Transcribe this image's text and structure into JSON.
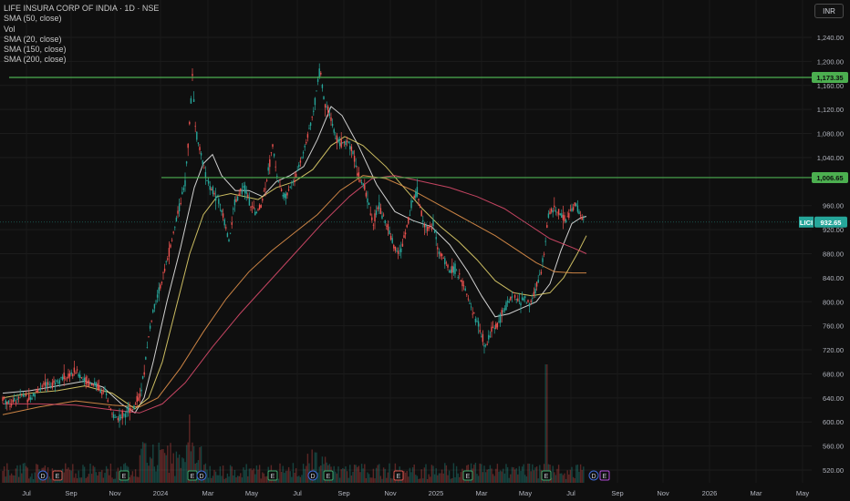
{
  "header": {
    "symbol_title": "LIFE INSURA CORP OF INDIA · 1D · NSE",
    "indicators": [
      "SMA (50, close)",
      "Vol",
      "SMA (20, close)",
      "SMA (150, close)",
      "SMA (200, close)"
    ],
    "currency_button": "INR"
  },
  "chart_data": {
    "type": "candlestick",
    "symbol": "LICI",
    "last_price": "932.65",
    "y_ticks": [
      520,
      560,
      600,
      640,
      680,
      720,
      760,
      800,
      840,
      880,
      920,
      960,
      1040,
      1080,
      1120,
      1160,
      1200,
      1240
    ],
    "y_tick_labels": [
      "520.00",
      "560.00",
      "600.00",
      "640.00",
      "680.00",
      "720.00",
      "760.00",
      "800.00",
      "840.00",
      "880.00",
      "920.00",
      "960.00",
      "1,040.00",
      "1,080.00",
      "1,120.00",
      "1,160.00",
      "1,200.00",
      "1,240.00"
    ],
    "x_tick_labels": [
      "Jul",
      "Sep",
      "Nov",
      "2024",
      "Mar",
      "May",
      "Jul",
      "Sep",
      "Nov",
      "2025",
      "Mar",
      "May",
      "Jul",
      "Sep",
      "Nov",
      "2026",
      "Mar",
      "May"
    ],
    "horizontal_levels": [
      {
        "value": 1173.35,
        "label": "1,173.35"
      },
      {
        "value": 1006.65,
        "label": "1,006.65"
      }
    ],
    "price_path": [
      [
        0,
        640
      ],
      [
        8,
        630
      ],
      [
        20,
        645
      ],
      [
        30,
        640
      ],
      [
        40,
        655
      ],
      [
        50,
        662
      ],
      [
        60,
        670
      ],
      [
        70,
        675
      ],
      [
        80,
        685
      ],
      [
        88,
        672
      ],
      [
        96,
        665
      ],
      [
        104,
        660
      ],
      [
        112,
        648
      ],
      [
        120,
        612
      ],
      [
        128,
        605
      ],
      [
        136,
        620
      ],
      [
        144,
        625
      ],
      [
        152,
        650
      ],
      [
        158,
        720
      ],
      [
        164,
        780
      ],
      [
        170,
        810
      ],
      [
        176,
        845
      ],
      [
        182,
        880
      ],
      [
        188,
        920
      ],
      [
        194,
        960
      ],
      [
        200,
        1000
      ],
      [
        205,
        1100
      ],
      [
        208,
        1175
      ],
      [
        212,
        1080
      ],
      [
        218,
        1040
      ],
      [
        224,
        1000
      ],
      [
        230,
        985
      ],
      [
        236,
        970
      ],
      [
        242,
        940
      ],
      [
        248,
        900
      ],
      [
        254,
        960
      ],
      [
        260,
        980
      ],
      [
        266,
        990
      ],
      [
        272,
        960
      ],
      [
        278,
        945
      ],
      [
        284,
        965
      ],
      [
        290,
        1010
      ],
      [
        296,
        1060
      ],
      [
        302,
        1000
      ],
      [
        308,
        975
      ],
      [
        314,
        990
      ],
      [
        320,
        1005
      ],
      [
        326,
        1030
      ],
      [
        332,
        1060
      ],
      [
        338,
        1100
      ],
      [
        343,
        1140
      ],
      [
        348,
        1190
      ],
      [
        352,
        1140
      ],
      [
        358,
        1110
      ],
      [
        364,
        1080
      ],
      [
        370,
        1060
      ],
      [
        376,
        1070
      ],
      [
        382,
        1060
      ],
      [
        388,
        1020
      ],
      [
        394,
        1000
      ],
      [
        400,
        970
      ],
      [
        406,
        930
      ],
      [
        412,
        960
      ],
      [
        418,
        940
      ],
      [
        424,
        915
      ],
      [
        430,
        890
      ],
      [
        436,
        880
      ],
      [
        442,
        920
      ],
      [
        448,
        960
      ],
      [
        454,
        985
      ],
      [
        460,
        940
      ],
      [
        466,
        920
      ],
      [
        472,
        930
      ],
      [
        478,
        880
      ],
      [
        484,
        870
      ],
      [
        490,
        850
      ],
      [
        496,
        855
      ],
      [
        502,
        835
      ],
      [
        508,
        815
      ],
      [
        514,
        790
      ],
      [
        520,
        765
      ],
      [
        526,
        740
      ],
      [
        530,
        725
      ],
      [
        536,
        755
      ],
      [
        542,
        760
      ],
      [
        548,
        780
      ],
      [
        554,
        800
      ],
      [
        560,
        810
      ],
      [
        566,
        800
      ],
      [
        572,
        805
      ],
      [
        578,
        795
      ],
      [
        584,
        820
      ],
      [
        590,
        850
      ],
      [
        594,
        880
      ],
      [
        598,
        945
      ],
      [
        604,
        955
      ],
      [
        610,
        950
      ],
      [
        616,
        935
      ],
      [
        622,
        945
      ],
      [
        628,
        965
      ],
      [
        634,
        940
      ],
      [
        638,
        932
      ]
    ],
    "moving_averages": [
      {
        "name": "SMA (20, close)",
        "color": "#e6e6e6",
        "points": [
          [
            0,
            648
          ],
          [
            30,
            652
          ],
          [
            60,
            660
          ],
          [
            90,
            668
          ],
          [
            110,
            658
          ],
          [
            130,
            630
          ],
          [
            145,
            615
          ],
          [
            155,
            640
          ],
          [
            165,
            700
          ],
          [
            180,
            800
          ],
          [
            195,
            890
          ],
          [
            210,
            990
          ],
          [
            220,
            1030
          ],
          [
            230,
            1045
          ],
          [
            240,
            1010
          ],
          [
            255,
            985
          ],
          [
            270,
            985
          ],
          [
            285,
            975
          ],
          [
            300,
            1000
          ],
          [
            315,
            1010
          ],
          [
            330,
            1025
          ],
          [
            345,
            1070
          ],
          [
            360,
            1125
          ],
          [
            372,
            1110
          ],
          [
            390,
            1060
          ],
          [
            410,
            995
          ],
          [
            430,
            950
          ],
          [
            450,
            935
          ],
          [
            470,
            925
          ],
          [
            490,
            895
          ],
          [
            510,
            850
          ],
          [
            525,
            810
          ],
          [
            540,
            775
          ],
          [
            555,
            780
          ],
          [
            570,
            790
          ],
          [
            585,
            800
          ],
          [
            600,
            830
          ],
          [
            612,
            885
          ],
          [
            624,
            930
          ],
          [
            634,
            940
          ],
          [
            640,
            942
          ]
        ]
      },
      {
        "name": "SMA (50, close)",
        "color": "#e0cf6a",
        "points": [
          [
            0,
            640
          ],
          [
            30,
            648
          ],
          [
            60,
            652
          ],
          [
            90,
            660
          ],
          [
            120,
            648
          ],
          [
            145,
            622
          ],
          [
            160,
            640
          ],
          [
            175,
            700
          ],
          [
            190,
            790
          ],
          [
            205,
            880
          ],
          [
            220,
            945
          ],
          [
            235,
            975
          ],
          [
            250,
            980
          ],
          [
            265,
            975
          ],
          [
            280,
            970
          ],
          [
            300,
            990
          ],
          [
            320,
            1000
          ],
          [
            340,
            1020
          ],
          [
            360,
            1060
          ],
          [
            375,
            1075
          ],
          [
            395,
            1060
          ],
          [
            420,
            1025
          ],
          [
            440,
            990
          ],
          [
            460,
            955
          ],
          [
            480,
            925
          ],
          [
            500,
            900
          ],
          [
            520,
            870
          ],
          [
            540,
            835
          ],
          [
            560,
            815
          ],
          [
            580,
            810
          ],
          [
            600,
            815
          ],
          [
            615,
            840
          ],
          [
            630,
            880
          ],
          [
            640,
            910
          ]
        ]
      },
      {
        "name": "SMA (150, close)",
        "color": "#e0904a",
        "points": [
          [
            0,
            612
          ],
          [
            40,
            625
          ],
          [
            80,
            635
          ],
          [
            120,
            628
          ],
          [
            150,
            625
          ],
          [
            170,
            640
          ],
          [
            195,
            690
          ],
          [
            220,
            750
          ],
          [
            245,
            805
          ],
          [
            270,
            850
          ],
          [
            295,
            885
          ],
          [
            320,
            915
          ],
          [
            345,
            945
          ],
          [
            370,
            985
          ],
          [
            395,
            1010
          ],
          [
            420,
            1005
          ],
          [
            450,
            985
          ],
          [
            480,
            960
          ],
          [
            510,
            935
          ],
          [
            540,
            910
          ],
          [
            565,
            885
          ],
          [
            585,
            865
          ],
          [
            605,
            850
          ],
          [
            625,
            848
          ],
          [
            640,
            848
          ]
        ]
      },
      {
        "name": "SMA (200, close)",
        "color": "#d84a6a",
        "points": [
          [
            0,
            630
          ],
          [
            40,
            630
          ],
          [
            80,
            628
          ],
          [
            120,
            620
          ],
          [
            150,
            615
          ],
          [
            175,
            630
          ],
          [
            200,
            665
          ],
          [
            230,
            725
          ],
          [
            260,
            780
          ],
          [
            290,
            830
          ],
          [
            320,
            880
          ],
          [
            350,
            930
          ],
          [
            380,
            975
          ],
          [
            405,
            1005
          ],
          [
            430,
            1010
          ],
          [
            460,
            1000
          ],
          [
            490,
            990
          ],
          [
            520,
            975
          ],
          [
            550,
            955
          ],
          [
            575,
            930
          ],
          [
            600,
            905
          ],
          [
            625,
            890
          ],
          [
            640,
            880
          ]
        ]
      }
    ],
    "volume_spike_indices": [
      205,
      596
    ],
    "event_markers": [
      {
        "x": 44,
        "label": "D"
      },
      {
        "x": 60,
        "label": "E"
      },
      {
        "x": 133,
        "label": "E"
      },
      {
        "x": 208,
        "label": "E"
      },
      {
        "x": 218,
        "label": "D"
      },
      {
        "x": 296,
        "label": "E"
      },
      {
        "x": 340,
        "label": "D"
      },
      {
        "x": 357,
        "label": "E"
      },
      {
        "x": 434,
        "label": "E"
      },
      {
        "x": 510,
        "label": "E"
      },
      {
        "x": 596,
        "label": "E"
      },
      {
        "x": 648,
        "label": "D"
      },
      {
        "x": 660,
        "label": "E"
      }
    ]
  },
  "colors": {
    "background": "#0f0f0f",
    "up": "#26a69a",
    "down": "#ef5350",
    "level_line": "#4caf50",
    "last_price_badge": "#26a69a"
  }
}
